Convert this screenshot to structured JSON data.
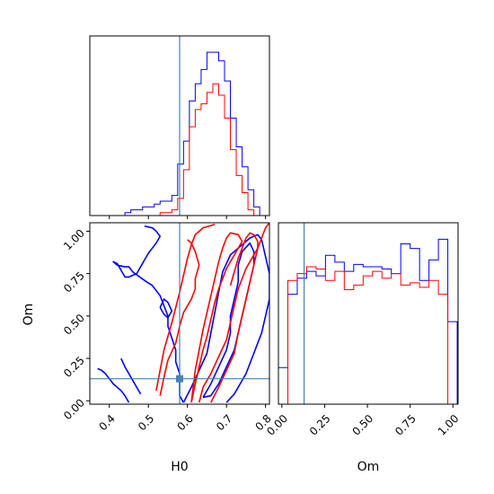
{
  "chart_data": {
    "type": "corner",
    "parameters": [
      "H0",
      "Om"
    ],
    "truth": {
      "H0": 0.58,
      "Om": 0.13
    },
    "truth_color": "#4682b4",
    "series": [
      {
        "color": "#0000ff"
      },
      {
        "color": "#ff0000"
      }
    ],
    "panels": [
      {
        "id": "hist-H0",
        "type": "histogram",
        "xlim": [
          0.35,
          0.81
        ],
        "xticks": [
          0.4,
          0.5,
          0.6,
          0.7,
          0.8
        ],
        "bin_edges": [
          0.35,
          0.365,
          0.38,
          0.395,
          0.41,
          0.425,
          0.44,
          0.455,
          0.47,
          0.485,
          0.5,
          0.515,
          0.53,
          0.545,
          0.56,
          0.575,
          0.59,
          0.605,
          0.62,
          0.635,
          0.65,
          0.665,
          0.68,
          0.695,
          0.71,
          0.725,
          0.74,
          0.755,
          0.77,
          0.785,
          0.8
        ],
        "series_values": [
          [
            0,
            0,
            0,
            0,
            0,
            0,
            1,
            2,
            2,
            3,
            3,
            4,
            5,
            5,
            7,
            18,
            26,
            40,
            46,
            51,
            57,
            57,
            54,
            47,
            34,
            24,
            17,
            9,
            3,
            0
          ],
          [
            0,
            0,
            0,
            0,
            0,
            0,
            0,
            0,
            0,
            0,
            0,
            0,
            1,
            1,
            2,
            6,
            16,
            31,
            37,
            39,
            43,
            46,
            42,
            34,
            23,
            14,
            8,
            2,
            0,
            0
          ]
        ]
      },
      {
        "id": "hist-Om",
        "type": "histogram",
        "xlim": [
          -0.02,
          1.03
        ],
        "xticks": [
          0.0,
          0.25,
          0.5,
          0.75,
          1.0
        ],
        "xtick_labels": [
          "0.00",
          "0.25",
          "0.50",
          "0.75",
          "1.00"
        ],
        "xlabel": "Om",
        "bin_edges": [
          -0.02,
          0.035,
          0.09,
          0.145,
          0.2,
          0.255,
          0.31,
          0.365,
          0.42,
          0.475,
          0.53,
          0.585,
          0.64,
          0.695,
          0.75,
          0.805,
          0.86,
          0.915,
          0.97,
          1.025
        ],
        "series_values": [
          [
            16,
            48,
            55,
            58,
            56,
            65,
            62,
            58,
            61,
            60,
            60,
            59,
            57,
            70,
            68,
            54,
            63,
            72,
            36
          ],
          [
            0,
            54,
            57,
            60,
            59,
            54,
            58,
            50,
            52,
            56,
            58,
            55,
            57,
            52,
            53,
            51,
            54,
            48,
            0
          ]
        ]
      },
      {
        "id": "joint-H0-Om",
        "type": "contour",
        "xlim": [
          0.35,
          0.81
        ],
        "ylim": [
          -0.02,
          1.05
        ],
        "xticks": [
          0.4,
          0.5,
          0.6,
          0.7,
          0.8
        ],
        "yticks": [
          0.0,
          0.25,
          0.5,
          0.75,
          1.0
        ],
        "ytick_labels": [
          "0.00",
          "0.25",
          "0.50",
          "0.75",
          "1.00"
        ],
        "xlabel": "H0",
        "ylabel": "Om",
        "contours": [
          {
            "series": 0,
            "points": [
              [
                0.49,
                1.03
              ],
              [
                0.51,
                1.02
              ],
              [
                0.52,
                1.0
              ],
              [
                0.53,
                0.97
              ],
              [
                0.52,
                0.93
              ],
              [
                0.51,
                0.9
              ],
              [
                0.5,
                0.87
              ],
              [
                0.49,
                0.83
              ],
              [
                0.48,
                0.79
              ],
              [
                0.47,
                0.75
              ],
              [
                0.45,
                0.73
              ],
              [
                0.44,
                0.73
              ],
              [
                0.43,
                0.77
              ],
              [
                0.42,
                0.81
              ],
              [
                0.41,
                0.82
              ],
              [
                0.42,
                0.8
              ],
              [
                0.44,
                0.79
              ],
              [
                0.45,
                0.79
              ],
              [
                0.46,
                0.76
              ],
              [
                0.49,
                0.71
              ],
              [
                0.51,
                0.68
              ],
              [
                0.53,
                0.62
              ],
              [
                0.54,
                0.56
              ],
              [
                0.55,
                0.5
              ],
              [
                0.55,
                0.44
              ],
              [
                0.56,
                0.37
              ],
              [
                0.57,
                0.3
              ],
              [
                0.57,
                0.23
              ],
              [
                0.58,
                0.16
              ],
              [
                0.58,
                0.1
              ],
              [
                0.58,
                0.03
              ],
              [
                0.59,
                -0.01
              ]
            ]
          },
          {
            "series": 0,
            "points": [
              [
                0.45,
                -0.01
              ],
              [
                0.44,
                0.03
              ],
              [
                0.43,
                0.06
              ],
              [
                0.42,
                0.08
              ],
              [
                0.41,
                0.1
              ],
              [
                0.4,
                0.13
              ],
              [
                0.39,
                0.16
              ],
              [
                0.38,
                0.18
              ],
              [
                0.37,
                0.19
              ]
            ]
          },
          {
            "series": 0,
            "points": [
              [
                0.48,
                0.04
              ],
              [
                0.47,
                0.08
              ],
              [
                0.46,
                0.12
              ],
              [
                0.45,
                0.16
              ],
              [
                0.44,
                0.2
              ],
              [
                0.43,
                0.25
              ]
            ]
          },
          {
            "series": 0,
            "points": [
              [
                0.53,
                0.55
              ],
              [
                0.54,
                0.51
              ],
              [
                0.55,
                0.49
              ],
              [
                0.56,
                0.53
              ],
              [
                0.55,
                0.58
              ],
              [
                0.54,
                0.6
              ],
              [
                0.53,
                0.55
              ]
            ]
          },
          {
            "series": 0,
            "points": [
              [
                0.64,
                0.02
              ],
              [
                0.66,
                0.1
              ],
              [
                0.68,
                0.2
              ],
              [
                0.7,
                0.3
              ],
              [
                0.71,
                0.4
              ],
              [
                0.71,
                0.5
              ],
              [
                0.72,
                0.6
              ],
              [
                0.73,
                0.7
              ],
              [
                0.73,
                0.8
              ],
              [
                0.74,
                0.88
              ],
              [
                0.76,
                0.93
              ],
              [
                0.77,
                0.88
              ],
              [
                0.77,
                0.8
              ],
              [
                0.76,
                0.7
              ],
              [
                0.75,
                0.6
              ],
              [
                0.74,
                0.5
              ],
              [
                0.73,
                0.4
              ],
              [
                0.72,
                0.3
              ],
              [
                0.7,
                0.2
              ],
              [
                0.68,
                0.1
              ],
              [
                0.66,
                0.03
              ],
              [
                0.64,
                0.02
              ]
            ]
          },
          {
            "series": 0,
            "points": [
              [
                0.59,
                -0.01
              ],
              [
                0.61,
                0.08
              ],
              [
                0.63,
                0.18
              ],
              [
                0.65,
                0.28
              ],
              [
                0.66,
                0.4
              ],
              [
                0.67,
                0.52
              ],
              [
                0.68,
                0.64
              ],
              [
                0.69,
                0.76
              ],
              [
                0.71,
                0.86
              ],
              [
                0.74,
                0.92
              ],
              [
                0.76,
                0.96
              ],
              [
                0.78,
                0.98
              ],
              [
                0.79,
                0.95
              ],
              [
                0.8,
                0.85
              ],
              [
                0.81,
                0.75
              ],
              [
                0.81,
                0.6
              ],
              [
                0.8,
                0.5
              ],
              [
                0.79,
                0.4
              ],
              [
                0.77,
                0.28
              ],
              [
                0.75,
                0.16
              ],
              [
                0.72,
                0.04
              ],
              [
                0.7,
                -0.01
              ]
            ]
          },
          {
            "series": 1,
            "points": [
              [
                0.52,
                0.06
              ],
              [
                0.53,
                0.18
              ],
              [
                0.54,
                0.3
              ],
              [
                0.55,
                0.38
              ],
              [
                0.56,
                0.46
              ],
              [
                0.57,
                0.55
              ],
              [
                0.58,
                0.64
              ],
              [
                0.59,
                0.74
              ],
              [
                0.6,
                0.84
              ],
              [
                0.61,
                0.92
              ],
              [
                0.62,
                0.98
              ],
              [
                0.64,
                1.02
              ],
              [
                0.67,
                1.04
              ]
            ]
          },
          {
            "series": 1,
            "points": [
              [
                0.53,
                0.03
              ],
              [
                0.54,
                0.14
              ],
              [
                0.55,
                0.24
              ],
              [
                0.57,
                0.34
              ],
              [
                0.58,
                0.44
              ],
              [
                0.59,
                0.52
              ],
              [
                0.61,
                0.6
              ],
              [
                0.62,
                0.66
              ],
              [
                0.62,
                0.72
              ],
              [
                0.63,
                0.8
              ],
              [
                0.62,
                0.88
              ],
              [
                0.61,
                0.93
              ],
              [
                0.6,
                0.95
              ]
            ]
          },
          {
            "series": 1,
            "points": [
              [
                0.61,
                -0.01
              ],
              [
                0.62,
                0.1
              ],
              [
                0.63,
                0.2
              ],
              [
                0.64,
                0.3
              ],
              [
                0.65,
                0.38
              ],
              [
                0.66,
                0.48
              ],
              [
                0.67,
                0.58
              ],
              [
                0.68,
                0.66
              ],
              [
                0.69,
                0.72
              ],
              [
                0.7,
                0.78
              ],
              [
                0.71,
                0.82
              ],
              [
                0.72,
                0.86
              ],
              [
                0.73,
                0.9
              ],
              [
                0.74,
                0.94
              ],
              [
                0.73,
                0.98
              ],
              [
                0.71,
                0.99
              ],
              [
                0.7,
                0.96
              ],
              [
                0.69,
                0.9
              ],
              [
                0.68,
                0.82
              ],
              [
                0.67,
                0.72
              ],
              [
                0.66,
                0.62
              ],
              [
                0.65,
                0.52
              ],
              [
                0.64,
                0.42
              ],
              [
                0.63,
                0.3
              ],
              [
                0.62,
                0.18
              ],
              [
                0.61,
                -0.01
              ]
            ]
          },
          {
            "series": 1,
            "points": [
              [
                0.63,
                -0.01
              ],
              [
                0.64,
                0.08
              ],
              [
                0.66,
                0.16
              ],
              [
                0.68,
                0.26
              ],
              [
                0.7,
                0.36
              ],
              [
                0.71,
                0.46
              ],
              [
                0.72,
                0.56
              ],
              [
                0.73,
                0.66
              ],
              [
                0.74,
                0.72
              ],
              [
                0.75,
                0.78
              ],
              [
                0.76,
                0.82
              ],
              [
                0.77,
                0.86
              ],
              [
                0.78,
                0.9
              ],
              [
                0.78,
                0.94
              ],
              [
                0.77,
                0.98
              ],
              [
                0.76,
                0.99
              ],
              [
                0.75,
                0.96
              ],
              [
                0.74,
                0.9
              ],
              [
                0.73,
                0.84
              ],
              [
                0.72,
                0.76
              ],
              [
                0.71,
                0.68
              ]
            ]
          },
          {
            "series": 1,
            "points": [
              [
                0.66,
                -0.01
              ],
              [
                0.68,
                0.08
              ],
              [
                0.7,
                0.18
              ],
              [
                0.72,
                0.28
              ],
              [
                0.73,
                0.4
              ],
              [
                0.74,
                0.5
              ],
              [
                0.75,
                0.6
              ],
              [
                0.76,
                0.7
              ],
              [
                0.77,
                0.8
              ],
              [
                0.78,
                0.9
              ],
              [
                0.79,
                0.96
              ],
              [
                0.8,
                1.02
              ],
              [
                0.81,
                1.05
              ]
            ]
          }
        ]
      }
    ]
  }
}
